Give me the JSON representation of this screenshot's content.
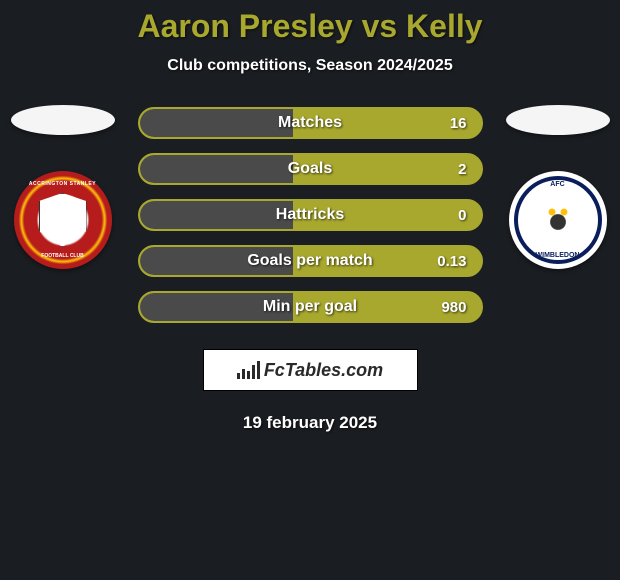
{
  "header": {
    "title": "Aaron Presley vs Kelly",
    "subtitle": "Club competitions, Season 2024/2025",
    "title_color": "#a8a82e"
  },
  "left": {
    "crest_text_top": "ACCRINGTON STANLEY",
    "crest_text_bottom": "FOOTBALL CLUB"
  },
  "right": {
    "crest_text_top": "AFC",
    "crest_text_bottom": "WIMBLEDON"
  },
  "stats": [
    {
      "label": "Matches",
      "value": "16",
      "fill_pct": 45
    },
    {
      "label": "Goals",
      "value": "2",
      "fill_pct": 45
    },
    {
      "label": "Hattricks",
      "value": "0",
      "fill_pct": 45
    },
    {
      "label": "Goals per match",
      "value": "0.13",
      "fill_pct": 45
    },
    {
      "label": "Min per goal",
      "value": "980",
      "fill_pct": 45
    }
  ],
  "styling": {
    "pill_bg": "#a8a82e",
    "pill_fill": "#4a4a4a",
    "page_bg": "#1a1d21"
  },
  "brand": {
    "text": "FcTables.com"
  },
  "footer": {
    "date": "19 february 2025"
  }
}
